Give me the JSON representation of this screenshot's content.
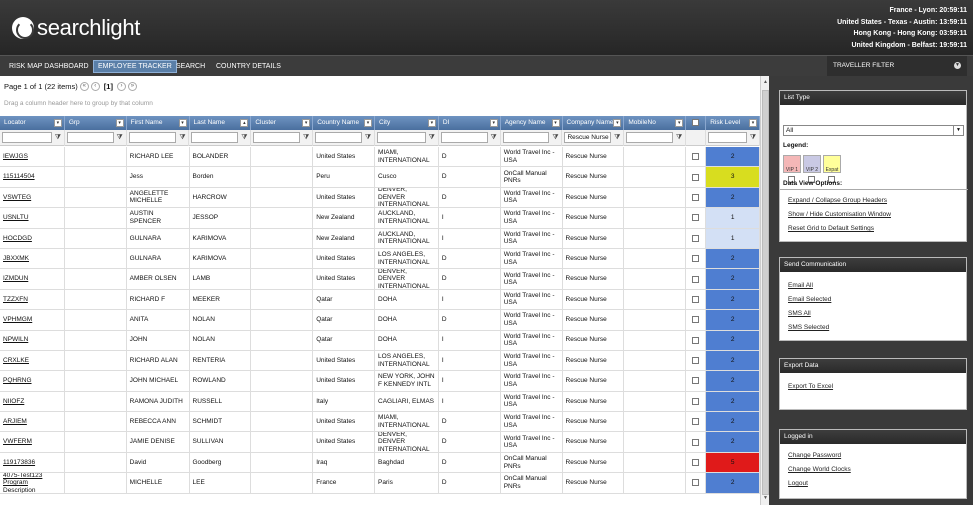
{
  "app": {
    "logo_text": "searchlight"
  },
  "clocks": [
    "France - Lyon: 20:59:11",
    "United States - Texas - Austin: 13:59:11",
    "Hong Kong - Hong Kong: 03:59:11",
    "United Kingdom - Belfast: 19:59:11"
  ],
  "nav": {
    "items": [
      "RISK MAP DASHBOARD",
      "EMPLOYEE TRACKER",
      "SEARCH",
      "COUNTRY DETAILS"
    ],
    "active": "EMPLOYEE TRACKER",
    "traveller_filter": "TRAVELLER FILTER"
  },
  "pager": {
    "summary": "Page 1 of 1 (22 items)",
    "current": "[1]",
    "first": "«",
    "prev": "‹",
    "next": "›",
    "last": "»"
  },
  "group_hint": "Drag a column header here to group by that column",
  "columns": [
    "Locator",
    "Grp",
    "First Name",
    "Last Name",
    "Cluster",
    "Country Name",
    "City",
    "DI",
    "Agency Name",
    "Company Name",
    "MobileNo",
    "",
    "Risk Level"
  ],
  "filter_company": "Rescue Nurse",
  "risk_colors": {
    "1": "#d3e0f5",
    "2": "#4f7ed1",
    "3": "#d8dd1f",
    "5": "#e01a1a"
  },
  "rows": [
    {
      "locator": "IEWJGS",
      "grp": "",
      "first": "RICHARD LEE",
      "last": "BOLANDER",
      "cluster": "",
      "country": "United States",
      "city": "MIAMI, INTERNATIONAL",
      "di": "D",
      "agency": "World Travel Inc - USA",
      "company": "Rescue Nurse",
      "mobile": "",
      "risk": "2"
    },
    {
      "locator": "115114504",
      "grp": "",
      "first": "Jess",
      "last": "Borden",
      "cluster": "",
      "country": "Peru",
      "city": "Cusco",
      "di": "D",
      "agency": "OnCall Manual PNRs",
      "company": "Rescue Nurse",
      "mobile": "",
      "risk": "3"
    },
    {
      "locator": "VSWTEG",
      "grp": "",
      "first": "ANGELETTE MICHELLE",
      "last": "HARCROW",
      "cluster": "",
      "country": "United States",
      "city": "DENVER, DENVER INTERNATIONAL",
      "di": "D",
      "agency": "World Travel Inc - USA",
      "company": "Rescue Nurse",
      "mobile": "",
      "risk": "2"
    },
    {
      "locator": "USNLTU",
      "grp": "",
      "first": "AUSTIN SPENCER",
      "last": "JESSOP",
      "cluster": "",
      "country": "New Zealand",
      "city": "AUCKLAND, INTERNATIONAL",
      "di": "I",
      "agency": "World Travel Inc - USA",
      "company": "Rescue Nurse",
      "mobile": "",
      "risk": "1"
    },
    {
      "locator": "HOCDGD",
      "grp": "",
      "first": "GULNARA",
      "last": "KARIMOVA",
      "cluster": "",
      "country": "New Zealand",
      "city": "AUCKLAND, INTERNATIONAL",
      "di": "I",
      "agency": "World Travel Inc - USA",
      "company": "Rescue Nurse",
      "mobile": "",
      "risk": "1"
    },
    {
      "locator": "JBXXMK",
      "grp": "",
      "first": "GULNARA",
      "last": "KARIMOVA",
      "cluster": "",
      "country": "United States",
      "city": "LOS ANGELES, INTERNATIONAL",
      "di": "D",
      "agency": "World Travel Inc - USA",
      "company": "Rescue Nurse",
      "mobile": "",
      "risk": "2"
    },
    {
      "locator": "IZMDUN",
      "grp": "",
      "first": "AMBER OLSEN",
      "last": "LAMB",
      "cluster": "",
      "country": "United States",
      "city": "DENVER, DENVER INTERNATIONAL",
      "di": "D",
      "agency": "World Travel Inc - USA",
      "company": "Rescue Nurse",
      "mobile": "",
      "risk": "2"
    },
    {
      "locator": "TZZXFN",
      "grp": "",
      "first": "RICHARD F",
      "last": "MEEKER",
      "cluster": "",
      "country": "Qatar",
      "city": "DOHA",
      "di": "I",
      "agency": "World Travel Inc - USA",
      "company": "Rescue Nurse",
      "mobile": "",
      "risk": "2"
    },
    {
      "locator": "VPHMGM",
      "grp": "",
      "first": "ANITA",
      "last": "NOLAN",
      "cluster": "",
      "country": "Qatar",
      "city": "DOHA",
      "di": "D",
      "agency": "World Travel Inc - USA",
      "company": "Rescue Nurse",
      "mobile": "",
      "risk": "2"
    },
    {
      "locator": "NPWILN",
      "grp": "",
      "first": "JOHN",
      "last": "NOLAN",
      "cluster": "",
      "country": "Qatar",
      "city": "DOHA",
      "di": "I",
      "agency": "World Travel Inc - USA",
      "company": "Rescue Nurse",
      "mobile": "",
      "risk": "2"
    },
    {
      "locator": "CRXLKE",
      "grp": "",
      "first": "RICHARD ALAN",
      "last": "RENTERIA",
      "cluster": "",
      "country": "United States",
      "city": "LOS ANGELES, INTERNATIONAL",
      "di": "I",
      "agency": "World Travel Inc - USA",
      "company": "Rescue Nurse",
      "mobile": "",
      "risk": "2"
    },
    {
      "locator": "PQHRNG",
      "grp": "",
      "first": "JOHN MICHAEL",
      "last": "ROWLAND",
      "cluster": "",
      "country": "United States",
      "city": "NEW YORK, JOHN F KENNEDY INTL",
      "di": "I",
      "agency": "World Travel Inc - USA",
      "company": "Rescue Nurse",
      "mobile": "",
      "risk": "2"
    },
    {
      "locator": "NIIOFZ",
      "grp": "",
      "first": "RAMONA JUDITH",
      "last": "RUSSELL",
      "cluster": "",
      "country": "Italy",
      "city": "CAGLIARI, ELMAS",
      "di": "I",
      "agency": "World Travel Inc - USA",
      "company": "Rescue Nurse",
      "mobile": "",
      "risk": "2"
    },
    {
      "locator": "ARJIEM",
      "grp": "",
      "first": "REBECCA ANN",
      "last": "SCHMIDT",
      "cluster": "",
      "country": "United States",
      "city": "MIAMI, INTERNATIONAL",
      "di": "D",
      "agency": "World Travel Inc - USA",
      "company": "Rescue Nurse",
      "mobile": "",
      "risk": "2"
    },
    {
      "locator": "VWFERM",
      "grp": "",
      "first": "JAMIE DENISE",
      "last": "SULLIVAN",
      "cluster": "",
      "country": "United States",
      "city": "DENVER, DENVER INTERNATIONAL",
      "di": "D",
      "agency": "World Travel Inc - USA",
      "company": "Rescue Nurse",
      "mobile": "",
      "risk": "2"
    },
    {
      "locator": "119173836",
      "grp": "",
      "first": "David",
      "last": "Goodberg",
      "cluster": "",
      "country": "Iraq",
      "city": "Baghdad",
      "di": "D",
      "agency": "OnCall Manual PNRs",
      "company": "Rescue Nurse",
      "mobile": "",
      "risk": "5"
    },
    {
      "locator": "4075-Test123 Program Description",
      "grp": "",
      "first": "MICHELLE",
      "last": "LEE",
      "cluster": "",
      "country": "France",
      "city": "Paris",
      "di": "D",
      "agency": "OnCall Manual PNRs",
      "company": "Rescue Nurse",
      "mobile": "",
      "risk": "2"
    }
  ],
  "right_panel": {
    "list_type": {
      "header": "List Type",
      "selected": "All",
      "legend_label": "Legend:",
      "legend": [
        "VIP 1",
        "VIP 2",
        "Expat"
      ],
      "legend_colors": [
        "#f4b7b7",
        "#c9c9e4",
        "#ffff9a"
      ],
      "view_label": "Data View Options:",
      "links": [
        "Expand / Collapse Group Headers",
        "Show / Hide Customisation Window",
        "Reset Grid to Default Settings"
      ]
    },
    "send": {
      "header": "Send Communication",
      "links": [
        "Email All",
        "Email Selected",
        "SMS All",
        "SMS Selected"
      ]
    },
    "export": {
      "header": "Export Data",
      "links": [
        "Export To Excel"
      ]
    },
    "logged": {
      "header": "Logged in",
      "links": [
        "Change Password",
        "Change World Clocks",
        "Logout"
      ]
    }
  }
}
